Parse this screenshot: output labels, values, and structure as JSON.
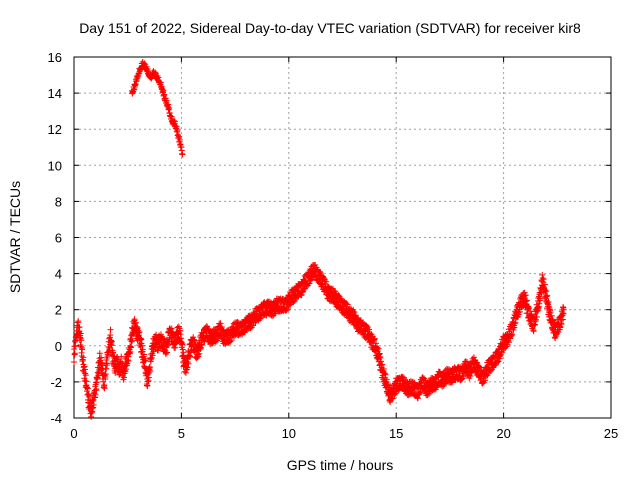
{
  "chart_data": {
    "type": "scatter",
    "title": "Day 151 of 2022, Sidereal Day-to-day VTEC variation (SDTVAR) for receiver kir8",
    "xlabel": "GPS time / hours",
    "ylabel": "SDTVAR / TECUs",
    "xlim": [
      0,
      25
    ],
    "ylim": [
      -4,
      16
    ],
    "xticks": [
      0,
      5,
      10,
      15,
      20,
      25
    ],
    "yticks": [
      -4,
      -2,
      0,
      2,
      4,
      6,
      8,
      10,
      12,
      14,
      16
    ],
    "grid": true,
    "marker": "+",
    "color": "#ff0000",
    "series": [
      {
        "name": "SDTVAR",
        "x": [
          0.0,
          0.1,
          0.2,
          0.3,
          0.4,
          0.5,
          0.6,
          0.7,
          0.8,
          0.9,
          1.0,
          1.1,
          1.2,
          1.3,
          1.4,
          1.5,
          1.6,
          1.7,
          1.8,
          1.9,
          2.0,
          2.1,
          2.2,
          2.3,
          2.4,
          2.5,
          2.6,
          2.7,
          2.8,
          2.9,
          3.0,
          3.1,
          3.2,
          3.3,
          3.4,
          3.5,
          3.6,
          3.7,
          3.8,
          3.9,
          4.0,
          4.1,
          4.2,
          4.3,
          4.4,
          4.5,
          4.6,
          4.7,
          4.8,
          4.9,
          5.0,
          5.1,
          5.2,
          5.3,
          5.4,
          5.5,
          5.6,
          5.7,
          5.8,
          5.9,
          6.0,
          6.2,
          6.4,
          6.6,
          6.8,
          7.0,
          7.2,
          7.4,
          7.6,
          7.8,
          8.0,
          8.2,
          8.4,
          8.6,
          8.8,
          9.0,
          9.2,
          9.4,
          9.6,
          9.8,
          10.0,
          10.2,
          10.4,
          10.6,
          10.8,
          11.0,
          11.2,
          11.4,
          11.6,
          11.8,
          12.0,
          12.2,
          12.4,
          12.6,
          12.8,
          13.0,
          13.2,
          13.4,
          13.6,
          13.8,
          14.0,
          14.1,
          14.2,
          14.3,
          14.4,
          14.5,
          14.6,
          14.7,
          14.8,
          14.9,
          15.0,
          15.2,
          15.4,
          15.6,
          15.8,
          16.0,
          16.2,
          16.4,
          16.6,
          16.8,
          17.0,
          17.2,
          17.4,
          17.6,
          17.8,
          18.0,
          18.2,
          18.4,
          18.6,
          18.8,
          19.0,
          19.2,
          19.4,
          19.6,
          19.8,
          20.0,
          20.2,
          20.4,
          20.6,
          20.8,
          21.0,
          21.2,
          21.4,
          21.6,
          21.8,
          22.0,
          22.2,
          22.4,
          22.6,
          22.8
        ],
        "y": [
          -0.5,
          0.6,
          1.0,
          0.4,
          -0.8,
          -1.6,
          -2.4,
          -3.2,
          -3.6,
          -3.0,
          -2.4,
          -1.6,
          -0.8,
          -1.2,
          -2.2,
          -1.0,
          -0.2,
          0.5,
          -0.6,
          -1.2,
          -0.8,
          -1.4,
          -1.0,
          -1.6,
          -1.0,
          -0.6,
          -0.2,
          0.6,
          1.2,
          0.8,
          0.6,
          0.2,
          -0.6,
          -1.0,
          -2.0,
          -1.4,
          -0.4,
          0.0,
          0.3,
          0.0,
          0.4,
          0.2,
          0.0,
          -0.2,
          0.5,
          0.8,
          0.4,
          0.2,
          0.6,
          0.7,
          0.2,
          -0.8,
          -1.2,
          -0.8,
          -0.2,
          0.3,
          0.0,
          -0.4,
          -0.2,
          0.2,
          0.6,
          0.7,
          0.4,
          0.6,
          0.9,
          0.4,
          0.5,
          0.8,
          1.0,
          0.9,
          1.2,
          1.3,
          1.6,
          1.8,
          2.0,
          2.1,
          2.0,
          2.2,
          2.3,
          2.2,
          2.5,
          2.8,
          3.0,
          3.2,
          3.6,
          3.9,
          4.2,
          3.8,
          3.5,
          3.0,
          2.8,
          2.6,
          2.3,
          2.1,
          1.8,
          1.6,
          1.2,
          1.0,
          0.8,
          0.4,
          0.0,
          -0.4,
          -0.6,
          -1.2,
          -1.6,
          -2.0,
          -2.4,
          -2.8,
          -2.6,
          -2.4,
          -2.2,
          -2.0,
          -2.2,
          -2.4,
          -2.3,
          -2.6,
          -2.0,
          -2.4,
          -2.2,
          -2.1,
          -1.8,
          -1.9,
          -1.6,
          -1.7,
          -1.5,
          -1.6,
          -1.2,
          -1.4,
          -1.0,
          -1.3,
          -1.8,
          -1.4,
          -1.0,
          -0.8,
          -0.4,
          0.2,
          0.4,
          1.0,
          1.8,
          2.4,
          2.6,
          1.6,
          1.2,
          2.2,
          3.6,
          2.6,
          1.4,
          0.8,
          1.2,
          2.0
        ],
        "x2": [
          2.7,
          2.8,
          2.9,
          3.0,
          3.1,
          3.2,
          3.3,
          3.4,
          3.5,
          3.6,
          3.7,
          3.8,
          3.9,
          4.0,
          4.1,
          4.2,
          4.3,
          4.4,
          4.5,
          4.6,
          4.7,
          4.8,
          4.9,
          5.0,
          5.05
        ],
        "y2": [
          14.0,
          14.3,
          14.7,
          15.1,
          15.4,
          15.6,
          15.5,
          15.3,
          15.0,
          14.9,
          15.1,
          15.0,
          14.8,
          14.6,
          14.3,
          13.8,
          13.5,
          13.2,
          12.7,
          12.4,
          12.3,
          11.9,
          11.4,
          11.0,
          10.6
        ]
      }
    ]
  }
}
